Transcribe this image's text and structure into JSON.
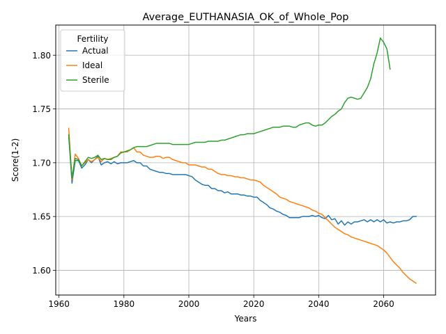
{
  "chart_data": {
    "type": "line",
    "title": "Average_EUTHANASIA_OK_of_Whole_Pop",
    "xlabel": "Years",
    "ylabel": "Score(1-2)",
    "xlim": [
      1959,
      2076
    ],
    "ylim": [
      1.577,
      1.828
    ],
    "xticks": [
      1960,
      1980,
      2000,
      2020,
      2040,
      2060
    ],
    "xtick_labels": [
      "1960",
      "1980",
      "2000",
      "2020",
      "2040",
      "2060"
    ],
    "yticks": [
      1.6,
      1.65,
      1.7,
      1.75,
      1.8
    ],
    "ytick_labels": [
      "1.60",
      "1.65",
      "1.70",
      "1.75",
      "1.80"
    ],
    "grid": true,
    "legend": {
      "title": "Fertility",
      "position": "top-left"
    },
    "series": [
      {
        "name": "Actual",
        "color": "#1f77b4",
        "x": [
          1963,
          1964,
          1965,
          1966,
          1967,
          1968,
          1969,
          1970,
          1971,
          1972,
          1973,
          1974,
          1975,
          1976,
          1977,
          1978,
          1979,
          1980,
          1981,
          1982,
          1983,
          1984,
          1985,
          1986,
          1987,
          1988,
          1989,
          1990,
          1991,
          1992,
          1993,
          1994,
          1995,
          1996,
          1997,
          1998,
          1999,
          2000,
          2001,
          2002,
          2003,
          2004,
          2005,
          2006,
          2007,
          2008,
          2009,
          2010,
          2011,
          2012,
          2013,
          2014,
          2015,
          2016,
          2017,
          2018,
          2019,
          2020,
          2021,
          2022,
          2023,
          2024,
          2025,
          2026,
          2027,
          2028,
          2029,
          2030,
          2031,
          2032,
          2033,
          2034,
          2035,
          2036,
          2037,
          2038,
          2039,
          2040,
          2041,
          2042,
          2043,
          2044,
          2045,
          2046,
          2047,
          2048,
          2049,
          2050,
          2051,
          2052,
          2053,
          2054,
          2055,
          2056,
          2057,
          2058,
          2059,
          2060,
          2061,
          2062,
          2063,
          2064,
          2065,
          2066,
          2067,
          2068,
          2069,
          2070
        ],
        "y": [
          1.725,
          1.681,
          1.702,
          1.702,
          1.695,
          1.698,
          1.703,
          1.7,
          1.703,
          1.706,
          1.698,
          1.7,
          1.701,
          1.699,
          1.701,
          1.699,
          1.7,
          1.7,
          1.7,
          1.701,
          1.702,
          1.7,
          1.7,
          1.697,
          1.697,
          1.694,
          1.693,
          1.692,
          1.691,
          1.691,
          1.69,
          1.69,
          1.689,
          1.689,
          1.689,
          1.689,
          1.689,
          1.688,
          1.687,
          1.684,
          1.682,
          1.68,
          1.679,
          1.679,
          1.676,
          1.676,
          1.674,
          1.674,
          1.672,
          1.673,
          1.671,
          1.671,
          1.671,
          1.67,
          1.67,
          1.669,
          1.669,
          1.668,
          1.668,
          1.665,
          1.663,
          1.661,
          1.658,
          1.657,
          1.655,
          1.654,
          1.652,
          1.651,
          1.649,
          1.649,
          1.649,
          1.649,
          1.65,
          1.65,
          1.65,
          1.651,
          1.65,
          1.651,
          1.649,
          1.648,
          1.651,
          1.647,
          1.648,
          1.643,
          1.646,
          1.642,
          1.645,
          1.643,
          1.645,
          1.645,
          1.646,
          1.647,
          1.645,
          1.647,
          1.645,
          1.647,
          1.645,
          1.647,
          1.644,
          1.645,
          1.644,
          1.645,
          1.645,
          1.646,
          1.646,
          1.647,
          1.65,
          1.65
        ]
      },
      {
        "name": "Ideal",
        "color": "#ff7f0e",
        "x": [
          1963,
          1964,
          1965,
          1966,
          1967,
          1968,
          1969,
          1970,
          1971,
          1972,
          1973,
          1974,
          1975,
          1976,
          1977,
          1978,
          1979,
          1980,
          1981,
          1982,
          1983,
          1984,
          1985,
          1986,
          1987,
          1988,
          1989,
          1990,
          1991,
          1992,
          1993,
          1994,
          1995,
          1996,
          1997,
          1998,
          1999,
          2000,
          2001,
          2002,
          2003,
          2004,
          2005,
          2006,
          2007,
          2008,
          2009,
          2010,
          2011,
          2012,
          2013,
          2014,
          2015,
          2016,
          2017,
          2018,
          2019,
          2020,
          2021,
          2022,
          2023,
          2024,
          2025,
          2026,
          2027,
          2028,
          2029,
          2030,
          2031,
          2032,
          2033,
          2034,
          2035,
          2036,
          2037,
          2038,
          2039,
          2040,
          2041,
          2042,
          2043,
          2044,
          2045,
          2046,
          2047,
          2048,
          2049,
          2050,
          2051,
          2052,
          2053,
          2054,
          2055,
          2056,
          2057,
          2058,
          2059,
          2060,
          2061,
          2062,
          2063,
          2064,
          2065,
          2066,
          2067,
          2068,
          2069,
          2070
        ],
        "y": [
          1.732,
          1.684,
          1.708,
          1.704,
          1.697,
          1.7,
          1.703,
          1.701,
          1.703,
          1.705,
          1.701,
          1.704,
          1.703,
          1.704,
          1.705,
          1.706,
          1.71,
          1.71,
          1.71,
          1.712,
          1.714,
          1.71,
          1.71,
          1.707,
          1.706,
          1.705,
          1.705,
          1.706,
          1.706,
          1.704,
          1.705,
          1.705,
          1.703,
          1.702,
          1.701,
          1.7,
          1.7,
          1.698,
          1.698,
          1.698,
          1.697,
          1.696,
          1.696,
          1.694,
          1.694,
          1.692,
          1.69,
          1.689,
          1.689,
          1.688,
          1.688,
          1.687,
          1.687,
          1.686,
          1.686,
          1.685,
          1.684,
          1.684,
          1.683,
          1.682,
          1.679,
          1.677,
          1.675,
          1.673,
          1.671,
          1.668,
          1.667,
          1.666,
          1.664,
          1.663,
          1.662,
          1.661,
          1.66,
          1.659,
          1.658,
          1.656,
          1.655,
          1.653,
          1.652,
          1.649,
          1.646,
          1.643,
          1.64,
          1.638,
          1.636,
          1.634,
          1.633,
          1.631,
          1.63,
          1.629,
          1.628,
          1.627,
          1.626,
          1.625,
          1.624,
          1.623,
          1.621,
          1.619,
          1.616,
          1.612,
          1.608,
          1.605,
          1.602,
          1.598,
          1.595,
          1.592,
          1.59,
          1.588
        ]
      },
      {
        "name": "Sterile",
        "color": "#2ca02c",
        "x": [
          1963,
          1964,
          1965,
          1966,
          1967,
          1968,
          1969,
          1970,
          1971,
          1972,
          1973,
          1974,
          1975,
          1976,
          1977,
          1978,
          1979,
          1980,
          1981,
          1982,
          1983,
          1984,
          1985,
          1986,
          1987,
          1988,
          1989,
          1990,
          1991,
          1992,
          1993,
          1994,
          1995,
          1996,
          1997,
          1998,
          1999,
          2000,
          2001,
          2002,
          2003,
          2004,
          2005,
          2006,
          2007,
          2008,
          2009,
          2010,
          2011,
          2012,
          2013,
          2014,
          2015,
          2016,
          2017,
          2018,
          2019,
          2020,
          2021,
          2022,
          2023,
          2024,
          2025,
          2026,
          2027,
          2028,
          2029,
          2030,
          2031,
          2032,
          2033,
          2034,
          2035,
          2036,
          2037,
          2038,
          2039,
          2040,
          2041,
          2042,
          2043,
          2044,
          2045,
          2046,
          2047,
          2048,
          2049,
          2050,
          2051,
          2052,
          2053,
          2054,
          2055,
          2056,
          2057,
          2058,
          2059,
          2060,
          2061,
          2062
        ],
        "y": [
          1.726,
          1.686,
          1.704,
          1.703,
          1.697,
          1.701,
          1.705,
          1.704,
          1.705,
          1.707,
          1.703,
          1.704,
          1.703,
          1.703,
          1.705,
          1.706,
          1.709,
          1.71,
          1.711,
          1.712,
          1.714,
          1.715,
          1.715,
          1.715,
          1.715,
          1.716,
          1.717,
          1.718,
          1.718,
          1.718,
          1.718,
          1.718,
          1.717,
          1.717,
          1.717,
          1.717,
          1.717,
          1.717,
          1.718,
          1.719,
          1.719,
          1.719,
          1.719,
          1.72,
          1.72,
          1.72,
          1.72,
          1.721,
          1.721,
          1.722,
          1.723,
          1.724,
          1.725,
          1.726,
          1.726,
          1.727,
          1.727,
          1.727,
          1.728,
          1.729,
          1.73,
          1.731,
          1.732,
          1.733,
          1.733,
          1.733,
          1.734,
          1.734,
          1.734,
          1.733,
          1.733,
          1.735,
          1.736,
          1.737,
          1.737,
          1.735,
          1.734,
          1.735,
          1.735,
          1.737,
          1.74,
          1.743,
          1.745,
          1.748,
          1.75,
          1.756,
          1.76,
          1.761,
          1.76,
          1.759,
          1.76,
          1.765,
          1.77,
          1.778,
          1.792,
          1.802,
          1.816,
          1.812,
          1.806,
          1.787
        ]
      }
    ]
  }
}
